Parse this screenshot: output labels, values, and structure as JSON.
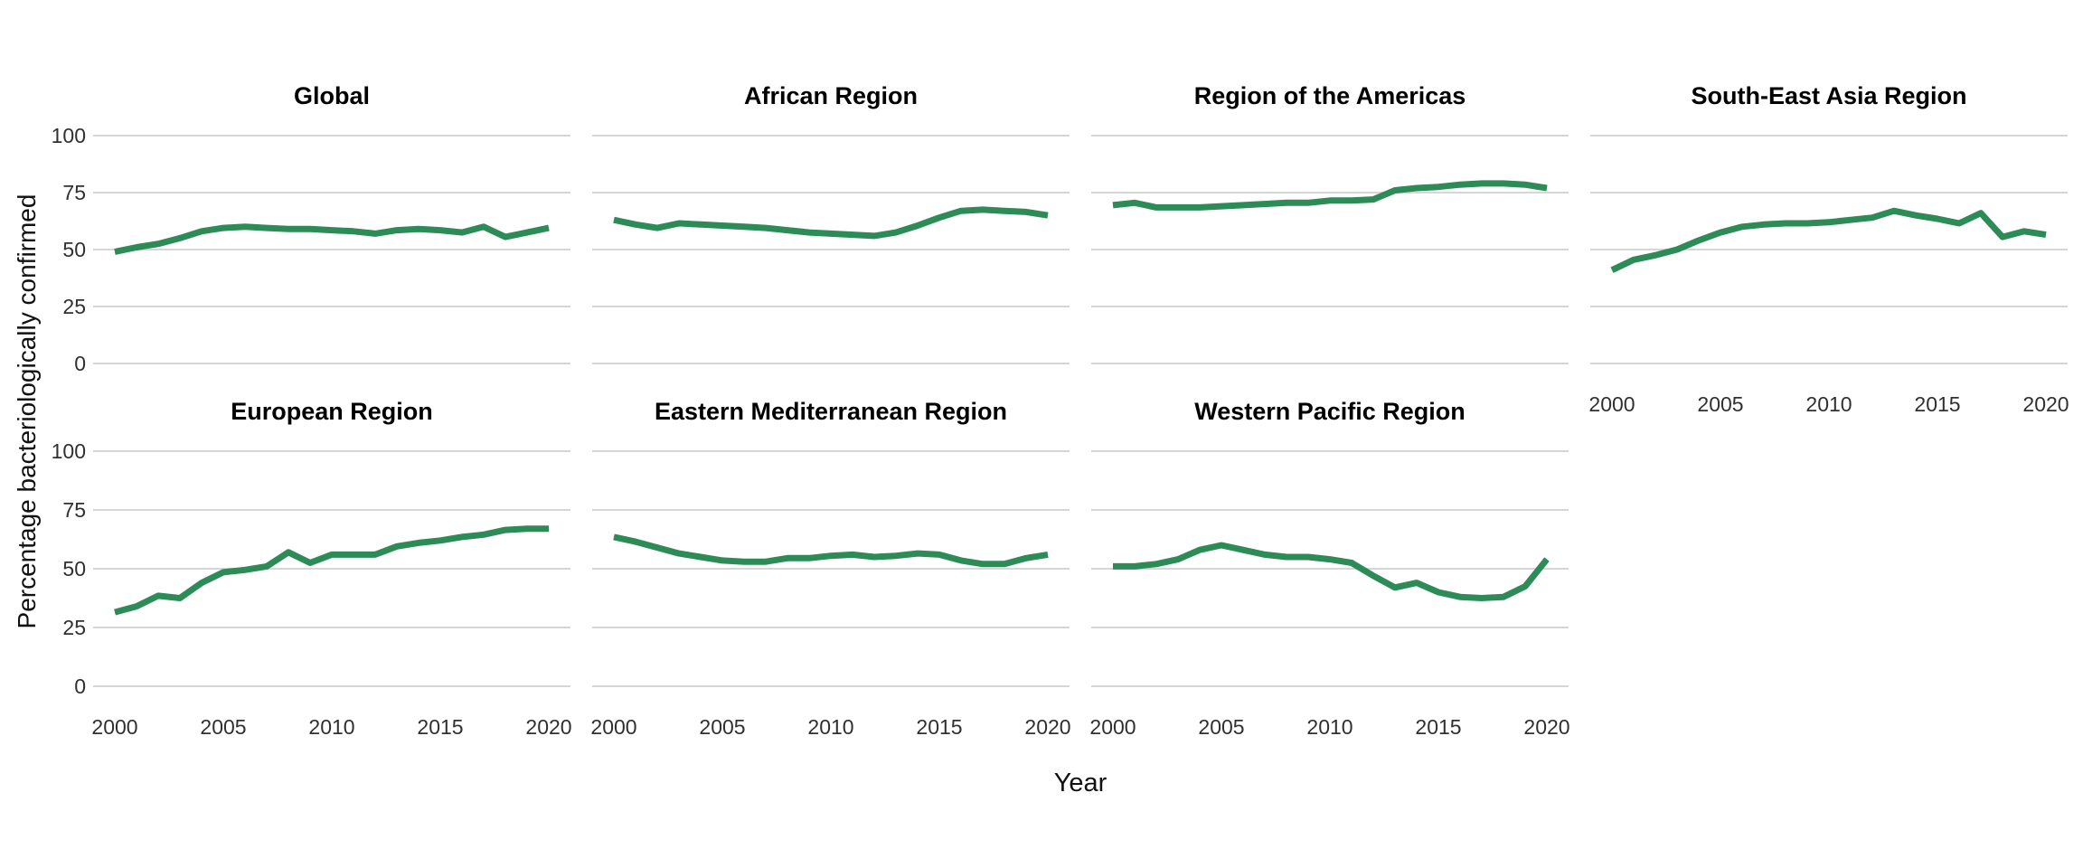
{
  "chart_data": {
    "type": "line",
    "title": "",
    "xlabel": "Year",
    "ylabel": "Percentage bacteriologically confirmed",
    "x": [
      2000,
      2001,
      2002,
      2003,
      2004,
      2005,
      2006,
      2007,
      2008,
      2009,
      2010,
      2011,
      2012,
      2013,
      2014,
      2015,
      2016,
      2017,
      2018,
      2019,
      2020
    ],
    "x_ticks": [
      2000,
      2005,
      2010,
      2015,
      2020
    ],
    "x_tick_labels": [
      "2000",
      "2005",
      "2010",
      "2015",
      "2020"
    ],
    "y_ticks": [
      100,
      75,
      50,
      25,
      0
    ],
    "y_tick_labels": [
      "100",
      "75",
      "50",
      "25",
      "0"
    ],
    "ylim": [
      0,
      100
    ],
    "xlim": [
      2000,
      2020
    ],
    "grid": "horizontal-major-only",
    "legend": "none",
    "layout": "facet-grid-2-rows-4-cols",
    "line_color": "#2d8b57",
    "gridline_color": "#d6d6d6",
    "facets": [
      {
        "title": "Global",
        "values": [
          49,
          51,
          52.5,
          55,
          58,
          59.5,
          60,
          59.5,
          59,
          59,
          58.5,
          58,
          57,
          58.5,
          59,
          58.5,
          57.5,
          60,
          55.5,
          57.5,
          59.5
        ]
      },
      {
        "title": "African Region",
        "values": [
          63,
          61,
          59.5,
          61.5,
          61,
          60.5,
          60,
          59.5,
          58.5,
          57.5,
          57,
          56.5,
          56,
          57.5,
          60.5,
          64,
          67,
          67.5,
          67,
          66.5,
          65
        ]
      },
      {
        "title": "Region of the Americas",
        "values": [
          69.5,
          70.5,
          68.5,
          68.5,
          68.5,
          69,
          69.5,
          70,
          70.5,
          70.5,
          71.5,
          71.5,
          72,
          76,
          77,
          77.5,
          78.5,
          79,
          79,
          78.5,
          77
        ]
      },
      {
        "title": "South-East Asia Region",
        "values": [
          41,
          45.5,
          47.5,
          50,
          54,
          57.5,
          60,
          61,
          61.5,
          61.5,
          62,
          63,
          64,
          67,
          65,
          63.5,
          61.5,
          66,
          55.5,
          58,
          56.5
        ]
      },
      {
        "title": "European Region",
        "values": [
          31.5,
          34,
          38.5,
          37.5,
          44,
          48.5,
          49.5,
          51,
          57,
          52.5,
          56,
          56,
          56,
          59.5,
          61,
          62,
          63.5,
          64.5,
          66.5,
          67,
          67
        ]
      },
      {
        "title": "Eastern Mediterranean Region",
        "values": [
          63.5,
          61.5,
          59,
          56.5,
          55,
          53.5,
          53,
          53,
          54.5,
          54.5,
          55.5,
          56,
          55,
          55.5,
          56.5,
          56,
          53.5,
          52,
          52,
          54.5,
          56
        ]
      },
      {
        "title": "Western Pacific Region",
        "values": [
          51,
          51,
          52,
          54,
          58,
          60,
          58,
          56,
          55,
          55,
          54,
          52.5,
          47,
          42,
          44,
          40,
          38,
          37.5,
          38,
          42.5,
          54
        ]
      }
    ]
  }
}
